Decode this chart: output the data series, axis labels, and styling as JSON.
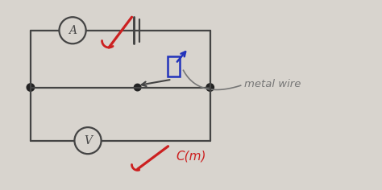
{
  "bg_color": "#d8d4ce",
  "line_color": "#444444",
  "line_width": 1.6,
  "red_color": "#cc2020",
  "blue_color": "#2233bb",
  "gray_color": "#777777",
  "ammeter_label": "A",
  "voltmeter_label": "V",
  "metal_wire_label": "metal wire",
  "cm_label": "C(m)",
  "node_color": "#222222"
}
